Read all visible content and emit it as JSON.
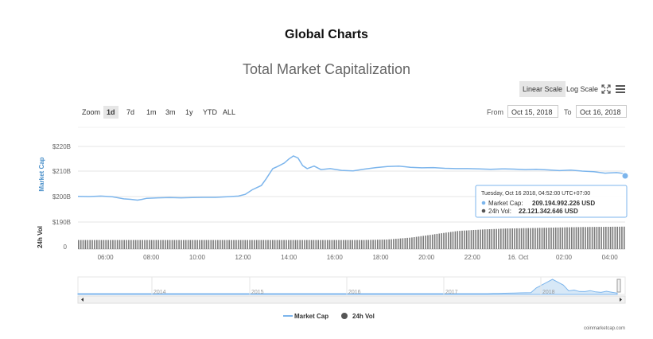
{
  "page": {
    "title": "Global Charts"
  },
  "chart_header": {
    "title": "Total Market Capitalization"
  },
  "scale": {
    "linear": "Linear Scale",
    "log": "Log Scale",
    "fullscreen_icon": "fullscreen-icon",
    "menu_icon": "hamburger-menu-icon",
    "active": "Linear Scale"
  },
  "zoom": {
    "label": "Zoom",
    "options": [
      "1d",
      "7d",
      "1m",
      "3m",
      "1y",
      "YTD",
      "ALL"
    ],
    "active": "1d"
  },
  "range": {
    "from_label": "From",
    "from_value": "Oct 15, 2018",
    "to_label": "To",
    "to_value": "Oct 16, 2018"
  },
  "tooltip": {
    "header": "Tuesday, Oct 16 2018, 04:52:00 UTC+07:00",
    "market_cap_label": "Market Cap:",
    "market_cap_value": "209.194.992.226 USD",
    "vol_label": "24h Vol:",
    "vol_value": "22.121.342.646 USD"
  },
  "legend": {
    "market_cap": "Market Cap",
    "vol": "24h Vol"
  },
  "credit": "coinmarketcap.com",
  "colors": {
    "market_cap": "#7cb5ec",
    "volume": "#7a7a7a",
    "axis_text": "#666666",
    "axis_title": "#4a8fc9"
  },
  "chart_data": {
    "type": "line",
    "title": "Total Market Capitalization",
    "x_ticks": [
      "06:00",
      "08:00",
      "10:00",
      "12:00",
      "14:00",
      "16:00",
      "18:00",
      "20:00",
      "22:00",
      "16. Oct",
      "02:00",
      "04:00"
    ],
    "y_axis": {
      "label": "Market Cap",
      "ticks": [
        "$190B",
        "$200B",
        "$210B",
        "$220B"
      ],
      "range": [
        190,
        220
      ],
      "unit": "billion USD"
    },
    "vol_axis": {
      "label": "24h Vol",
      "ticks": [
        "0"
      ]
    },
    "series": [
      {
        "name": "Market Cap",
        "x_hours": [
          0,
          0.5,
          1,
          1.5,
          2,
          2.3,
          2.6,
          2.8,
          3,
          3.5,
          4,
          4.5,
          5,
          5.5,
          6,
          6.5,
          7,
          7.3,
          7.6,
          8,
          8.2,
          8.5,
          8.7,
          9,
          9.2,
          9.4,
          9.6,
          9.8,
          10,
          10.3,
          10.6,
          11,
          11.5,
          12,
          12.5,
          13,
          13.5,
          14,
          14.5,
          15,
          15.5,
          16,
          16.5,
          17,
          17.5,
          18,
          18.5,
          19,
          19.5,
          20,
          20.5,
          21,
          21.5,
          22,
          22.5,
          23,
          23.5,
          23.87
        ],
        "values": [
          200.2,
          200.1,
          200.3,
          200,
          199.2,
          199.0,
          198.7,
          199.0,
          199.4,
          199.6,
          199.7,
          199.6,
          199.7,
          199.8,
          199.8,
          200.0,
          200.3,
          201,
          202.8,
          204.5,
          207,
          211.2,
          212.0,
          213.4,
          215.0,
          216.2,
          215.4,
          212.4,
          211.2,
          212.2,
          210.8,
          211.2,
          210.5,
          210.3,
          211.0,
          211.6,
          212.0,
          212.2,
          211.7,
          211.5,
          211.6,
          211.3,
          211.2,
          211.2,
          211.1,
          210.9,
          211.1,
          211.0,
          210.8,
          210.9,
          210.7,
          210.4,
          210.6,
          210.2,
          210.0,
          209.4,
          209.6,
          209.2
        ]
      },
      {
        "name": "24h Vol",
        "description": "volume bars; relative height profile rising around 12:00-14:00",
        "profile": [
          0.38,
          0.38,
          0.38,
          0.38,
          0.38,
          0.38,
          0.38,
          0.38,
          0.38,
          0.38,
          0.38,
          0.38,
          0.38,
          0.4,
          0.48,
          0.62,
          0.76,
          0.82,
          0.86,
          0.88,
          0.9,
          0.92,
          0.93,
          0.94
        ]
      }
    ],
    "navigator": {
      "x_ticks": [
        "2014",
        "2015",
        "2016",
        "2017",
        "2018"
      ]
    }
  }
}
